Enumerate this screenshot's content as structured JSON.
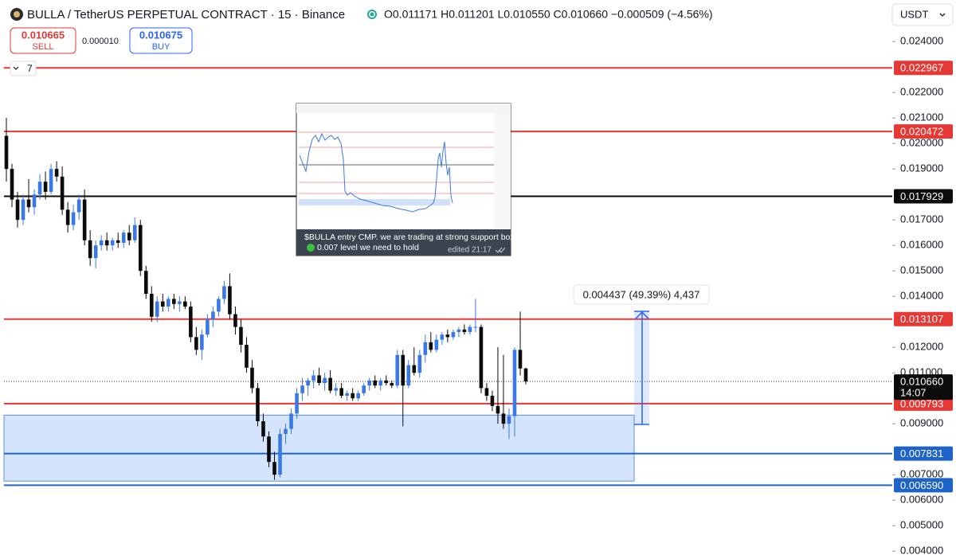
{
  "header": {
    "title": "BULLA / TetherUS PERPETUAL CONTRACT · 15 · Binance",
    "quote": "O0.011171 H0.011201 L0.010550 C0.010660 −0.000509 (−4.56%)",
    "currency": "USDT",
    "sell_price": "0.010665",
    "sell": "SELL",
    "spread": "0.000010",
    "buy_price": "0.010675",
    "buy": "BUY",
    "indicators": "7"
  },
  "inset": {
    "caption": "$BULLA entry CMP. we are trading at strong support box.",
    "note": "0.007 level we need to hold",
    "edited": "edited 21:17"
  },
  "chart_data": {
    "type": "candlestick",
    "up_color": "#3b78e7",
    "down_color": "#0b0b0b",
    "ylim": [
      0.00385,
      0.02563
    ],
    "yticks": [
      {
        "value": 0.024,
        "label": "0.024000"
      },
      {
        "value": 0.022,
        "label": "0.022000"
      },
      {
        "value": 0.021,
        "label": "0.021000"
      },
      {
        "value": 0.02,
        "label": "0.020000"
      },
      {
        "value": 0.019,
        "label": "0.019000"
      },
      {
        "value": 0.017,
        "label": "0.017000"
      },
      {
        "value": 0.016,
        "label": "0.016000"
      },
      {
        "value": 0.015,
        "label": "0.015000"
      },
      {
        "value": 0.014,
        "label": "0.014000"
      },
      {
        "value": 0.012,
        "label": "0.012000"
      },
      {
        "value": 0.011,
        "label": "0.011000"
      },
      {
        "value": 0.009,
        "label": "0.009000"
      },
      {
        "value": 0.007,
        "label": "0.007000"
      },
      {
        "value": 0.006,
        "label": "0.006000"
      },
      {
        "value": 0.005,
        "label": "0.005000"
      },
      {
        "value": 0.004,
        "label": "0.004000"
      }
    ],
    "ohlc": [
      [
        0.0203,
        0.021,
        0.0185,
        0.019
      ],
      [
        0.019,
        0.0192,
        0.0175,
        0.0178
      ],
      [
        0.0178,
        0.0181,
        0.0167,
        0.017
      ],
      [
        0.017,
        0.018,
        0.0168,
        0.0178
      ],
      [
        0.0178,
        0.0186,
        0.0173,
        0.0175
      ],
      [
        0.0175,
        0.0182,
        0.0172,
        0.018
      ],
      [
        0.018,
        0.0188,
        0.0178,
        0.0185
      ],
      [
        0.0185,
        0.0189,
        0.0178,
        0.0181
      ],
      [
        0.0181,
        0.0192,
        0.018,
        0.019
      ],
      [
        0.019,
        0.0193,
        0.0185,
        0.0187
      ],
      [
        0.0187,
        0.0191,
        0.0172,
        0.0174
      ],
      [
        0.0174,
        0.0177,
        0.0165,
        0.0168
      ],
      [
        0.0168,
        0.0176,
        0.0166,
        0.0173
      ],
      [
        0.0173,
        0.018,
        0.017,
        0.0178
      ],
      [
        0.0178,
        0.0182,
        0.016,
        0.0162
      ],
      [
        0.0162,
        0.0166,
        0.0152,
        0.0155
      ],
      [
        0.0155,
        0.0162,
        0.0151,
        0.016
      ],
      [
        0.016,
        0.0164,
        0.0158,
        0.0162
      ],
      [
        0.0162,
        0.0165,
        0.0158,
        0.016
      ],
      [
        0.016,
        0.0163,
        0.0158,
        0.0162
      ],
      [
        0.0162,
        0.0165,
        0.0159,
        0.0161
      ],
      [
        0.0161,
        0.0166,
        0.0159,
        0.0165
      ],
      [
        0.0165,
        0.0168,
        0.016,
        0.0162
      ],
      [
        0.0162,
        0.0171,
        0.0161,
        0.0168
      ],
      [
        0.0168,
        0.017,
        0.0148,
        0.015
      ],
      [
        0.015,
        0.0152,
        0.0139,
        0.0141
      ],
      [
        0.0141,
        0.0144,
        0.013,
        0.0132
      ],
      [
        0.0132,
        0.014,
        0.013,
        0.0138
      ],
      [
        0.0138,
        0.0141,
        0.0134,
        0.0136
      ],
      [
        0.0136,
        0.014,
        0.0134,
        0.0139
      ],
      [
        0.0139,
        0.0141,
        0.0135,
        0.0137
      ],
      [
        0.0137,
        0.014,
        0.0134,
        0.0138
      ],
      [
        0.0138,
        0.014,
        0.0135,
        0.0136
      ],
      [
        0.0136,
        0.0138,
        0.0122,
        0.0124
      ],
      [
        0.0124,
        0.0128,
        0.0117,
        0.0119
      ],
      [
        0.0119,
        0.0127,
        0.0115,
        0.0125
      ],
      [
        0.0125,
        0.0133,
        0.0124,
        0.0131
      ],
      [
        0.0131,
        0.0136,
        0.0128,
        0.0134
      ],
      [
        0.0134,
        0.014,
        0.0132,
        0.0139
      ],
      [
        0.0139,
        0.0146,
        0.0137,
        0.0144
      ],
      [
        0.0144,
        0.0149,
        0.0131,
        0.0133
      ],
      [
        0.0133,
        0.0136,
        0.0125,
        0.0128
      ],
      [
        0.0128,
        0.0131,
        0.0118,
        0.0121
      ],
      [
        0.0121,
        0.0124,
        0.011,
        0.0112
      ],
      [
        0.0112,
        0.0115,
        0.0102,
        0.0104
      ],
      [
        0.0104,
        0.0106,
        0.0089,
        0.0091
      ],
      [
        0.0091,
        0.0094,
        0.0083,
        0.0085
      ],
      [
        0.0085,
        0.0087,
        0.0073,
        0.0075
      ],
      [
        0.0075,
        0.0079,
        0.0068,
        0.007
      ],
      [
        0.007,
        0.0088,
        0.0069,
        0.0086
      ],
      [
        0.0086,
        0.009,
        0.0082,
        0.0088
      ],
      [
        0.0088,
        0.0096,
        0.0086,
        0.0094
      ],
      [
        0.0094,
        0.0104,
        0.0092,
        0.0102
      ],
      [
        0.0102,
        0.0108,
        0.0099,
        0.0105
      ],
      [
        0.0105,
        0.0108,
        0.0101,
        0.0107
      ],
      [
        0.0107,
        0.0111,
        0.0104,
        0.0109
      ],
      [
        0.0109,
        0.0112,
        0.0105,
        0.0106
      ],
      [
        0.0106,
        0.011,
        0.0103,
        0.0108
      ],
      [
        0.0108,
        0.0111,
        0.0102,
        0.0103
      ],
      [
        0.0103,
        0.0106,
        0.0101,
        0.0104
      ],
      [
        0.0104,
        0.0106,
        0.01,
        0.0101
      ],
      [
        0.0101,
        0.0103,
        0.0099,
        0.0102
      ],
      [
        0.0102,
        0.0104,
        0.0099,
        0.01
      ],
      [
        0.01,
        0.0103,
        0.0099,
        0.0102
      ],
      [
        0.0102,
        0.0106,
        0.0101,
        0.0105
      ],
      [
        0.0105,
        0.0108,
        0.0103,
        0.0107
      ],
      [
        0.0107,
        0.0109,
        0.0104,
        0.0105
      ],
      [
        0.0105,
        0.0108,
        0.0103,
        0.0107
      ],
      [
        0.0107,
        0.0109,
        0.0105,
        0.0106
      ],
      [
        0.0106,
        0.0107,
        0.0104,
        0.0105
      ],
      [
        0.0105,
        0.0119,
        0.0104,
        0.0117
      ],
      [
        0.0117,
        0.0119,
        0.0089,
        0.0105
      ],
      [
        0.0105,
        0.0115,
        0.0104,
        0.0113
      ],
      [
        0.0113,
        0.012,
        0.0109,
        0.011
      ],
      [
        0.011,
        0.0119,
        0.0108,
        0.0117
      ],
      [
        0.0117,
        0.0125,
        0.0114,
        0.0122
      ],
      [
        0.0122,
        0.0126,
        0.0118,
        0.0119
      ],
      [
        0.0119,
        0.0125,
        0.0118,
        0.0123
      ],
      [
        0.0123,
        0.0126,
        0.0121,
        0.0125
      ],
      [
        0.0125,
        0.0127,
        0.0122,
        0.0124
      ],
      [
        0.0124,
        0.0127,
        0.0123,
        0.0126
      ],
      [
        0.0126,
        0.0128,
        0.0124,
        0.0127
      ],
      [
        0.0127,
        0.0129,
        0.0125,
        0.0126
      ],
      [
        0.0126,
        0.0129,
        0.0125,
        0.0128
      ],
      [
        0.0128,
        0.0139,
        0.0126,
        0.0128
      ],
      [
        0.0128,
        0.0129,
        0.0102,
        0.0104
      ],
      [
        0.0104,
        0.0106,
        0.0099,
        0.0101
      ],
      [
        0.0101,
        0.0103,
        0.0095,
        0.0097
      ],
      [
        0.0097,
        0.012,
        0.009,
        0.0094
      ],
      [
        0.0094,
        0.0117,
        0.0088,
        0.009
      ],
      [
        0.009,
        0.0096,
        0.0084,
        0.0093
      ],
      [
        0.0093,
        0.012,
        0.0085,
        0.0119
      ],
      [
        0.0119,
        0.0134,
        0.0109,
        0.011171
      ],
      [
        0.011171,
        0.011201,
        0.01055,
        0.01066
      ]
    ],
    "levels": [
      {
        "price": 0.022967,
        "color": "#e53935"
      },
      {
        "price": 0.020472,
        "color": "#e53935"
      },
      {
        "price": 0.017929,
        "color": "#0b0b0b"
      },
      {
        "price": 0.013107,
        "color": "#e53935"
      },
      {
        "price": 0.009793,
        "color": "#e53935"
      },
      {
        "price": 0.007831,
        "color": "#1e63c8"
      },
      {
        "price": 0.00659,
        "label": "0.006590",
        "color": "#1e63c8"
      }
    ],
    "last_price": {
      "value": 0.01066,
      "label": "0.010660",
      "countdown": "14:07"
    },
    "zone": {
      "top": 0.00934,
      "bottom": 0.00675
    },
    "measure": {
      "from": 0.008973,
      "to": 0.01341,
      "label": "0.004437 (49.39%) 4,437"
    }
  }
}
